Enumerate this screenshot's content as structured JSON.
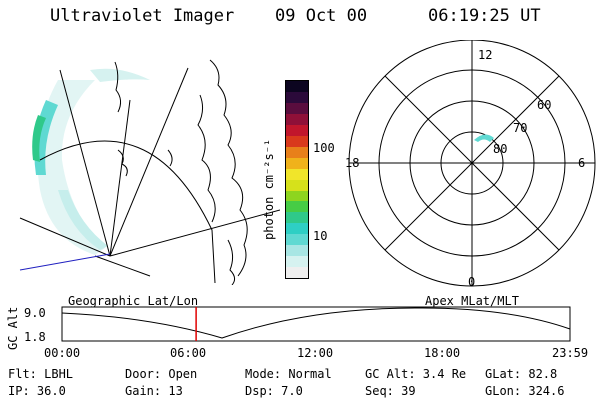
{
  "header": {
    "title": "Ultraviolet Imager",
    "date": "09 Oct 00",
    "time": "06:19:25 UT"
  },
  "colorbar": {
    "unit": "photon cm⁻²s⁻¹",
    "tick_100": "100",
    "tick_10": "10",
    "colors": [
      "#efefef",
      "#d6f2f0",
      "#a8e6e4",
      "#5fd9d2",
      "#2ecfc4",
      "#2fc98a",
      "#46cc45",
      "#8ed51f",
      "#d6e11b",
      "#f1e52a",
      "#f0b21b",
      "#e8801a",
      "#d9391c",
      "#c1162c",
      "#8f1038",
      "#5a0d3e",
      "#2b0a3a",
      "#0c0520"
    ]
  },
  "polar_plot": {
    "mlt_labels": {
      "top": "12",
      "left": "18",
      "right": "6",
      "bottom": "0"
    },
    "lat_labels": [
      "60",
      "70",
      "80"
    ]
  },
  "timeline": {
    "left_label": "Geographic Lat/Lon",
    "right_label": "Apex MLat/MLT",
    "axis_title": "GC Alt",
    "y_ticks": [
      "9.0",
      "1.8"
    ],
    "x_ticks": [
      "00:00",
      "06:00",
      "12:00",
      "18:00",
      "23:59"
    ],
    "current_time_fraction": 0.264
  },
  "info": {
    "filter": "Flt: LBHL",
    "door": "Door: Open",
    "mode": "Mode: Normal",
    "gc_alt": "GC Alt: 3.4 Re",
    "glat": "GLat: 82.8",
    "ip": "IP: 36.0",
    "gain": "Gain: 13",
    "dsp": "Dsp:   7.0",
    "seq": "Seq: 39",
    "glon": "GLon: 324.6"
  }
}
